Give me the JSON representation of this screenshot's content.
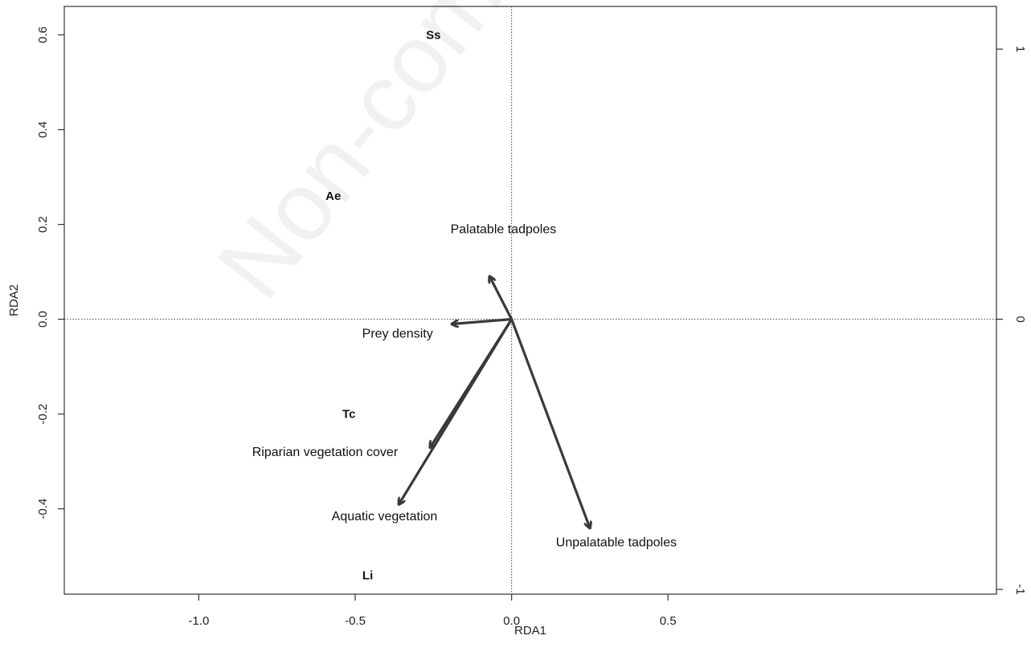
{
  "chart_data": {
    "type": "scatter",
    "subtype": "rda-biplot",
    "title": "",
    "xlabel": "RDA1",
    "ylabel": "RDA2",
    "xlim": [
      -1.43,
      1.55
    ],
    "ylim": [
      -0.58,
      0.66
    ],
    "x_ticks": [
      -1.0,
      -0.5,
      0.0,
      0.5
    ],
    "x_tick_labels": [
      "-1.0",
      "-0.5",
      "0.0",
      "0.5"
    ],
    "y_ticks": [
      0.6,
      0.4,
      0.2,
      0.0,
      -0.2,
      -0.4
    ],
    "y_tick_labels": [
      "0.6",
      "0.4",
      "0.2",
      "0.0",
      "-0.2",
      "-0.4"
    ],
    "y2_ticks": [
      1,
      0,
      -1
    ],
    "y2_tick_labels": [
      "1",
      "0",
      "-1"
    ],
    "y2_scale": 0.57,
    "reference_lines": {
      "x": 0,
      "y": 0,
      "style": "dotted"
    },
    "species": [
      {
        "label": "Ss",
        "x": -0.25,
        "y": 0.6
      },
      {
        "label": "Ae",
        "x": -0.57,
        "y": 0.26
      },
      {
        "label": "Tc",
        "x": -0.52,
        "y": -0.2
      },
      {
        "label": "Li",
        "x": -0.46,
        "y": -0.54
      }
    ],
    "vectors": [
      {
        "label": "Palatable  tadpoles",
        "x": -0.07,
        "y": 0.09
      },
      {
        "label": "Prey density",
        "x": -0.19,
        "y": -0.01
      },
      {
        "label": "Riparian vegetation cover",
        "x": -0.26,
        "y": -0.27
      },
      {
        "label": "Aquatic vegetation",
        "x": -0.36,
        "y": -0.39
      },
      {
        "label": "Unpalatable tadpoles",
        "x": 0.25,
        "y": -0.44
      }
    ],
    "grid": false,
    "legend": "none"
  },
  "watermark": "Non-commercial",
  "colors": {
    "arrow": "#3a3a3a",
    "axis": "#333333",
    "text": "#111111"
  }
}
